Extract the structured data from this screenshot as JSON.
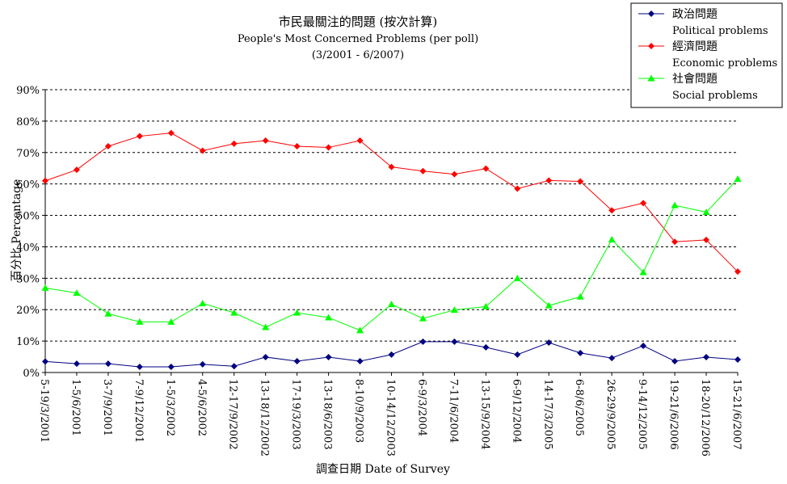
{
  "chart_data": {
    "type": "line",
    "title": "市民最關注的問題 (按次計算)",
    "subtitle": "People's Most Concerned Problems  (per poll)",
    "date_range": "(3/2001 - 6/2007)",
    "xlabel": "調查日期 Date of Survey",
    "ylabel": "百分比 Percentage",
    "ylim": [
      0,
      90
    ],
    "yticks": [
      "0%",
      "10%",
      "20%",
      "30%",
      "40%",
      "50%",
      "60%",
      "70%",
      "80%",
      "90%"
    ],
    "grid": true,
    "legend_position": "top-right",
    "categories": [
      "5-19/3/2001",
      "1-5/6/2001",
      "3-7/9/2001",
      "7-9/12/2001",
      "1-5/3/2002",
      "4-5/6/2002",
      "12-17/9/2002",
      "13-18/12/2002",
      "17-19/3/2003",
      "13-18/6/2003",
      "8-10/9/2003",
      "10-14/12/2003",
      "6-9/3/2004",
      "7-11/6/2004",
      "13-15/9/2004",
      "6-9/12/2004",
      "14-17/3/2005",
      "6-8/6/2005",
      "26-29/9/2005",
      "9-14/12/2005",
      "19-21/6/2006",
      "18-20/12/2006",
      "15-21/6/2007"
    ],
    "series": [
      {
        "name": "政治問題",
        "name_en": "Political problems",
        "color": "#000080",
        "marker": "diamond",
        "values": [
          3.5,
          2.8,
          2.8,
          1.8,
          1.8,
          2.6,
          2.0,
          4.9,
          3.6,
          4.9,
          3.6,
          5.7,
          9.8,
          9.8,
          8.0,
          5.7,
          9.5,
          6.2,
          4.6,
          8.5,
          3.6,
          4.9,
          4.1
        ]
      },
      {
        "name": "經濟問題",
        "name_en": "Economic problems",
        "color": "#ff0000",
        "marker": "diamond",
        "values": [
          61.0,
          64.5,
          72.0,
          75.2,
          76.2,
          70.6,
          72.8,
          73.8,
          72.0,
          71.6,
          73.8,
          65.4,
          64.1,
          63.1,
          64.9,
          58.5,
          61.1,
          60.8,
          51.6,
          53.9,
          41.6,
          42.2,
          32.1
        ]
      },
      {
        "name": "社會問題",
        "name_en": "Social problems",
        "color": "#00ff00",
        "marker": "triangle",
        "values": [
          26.9,
          25.3,
          18.7,
          16.1,
          16.1,
          22.0,
          19.0,
          14.4,
          19.0,
          17.5,
          13.4,
          21.7,
          17.2,
          19.9,
          21.0,
          30.0,
          21.3,
          24.1,
          42.3,
          31.9,
          53.2,
          51.0,
          61.6
        ]
      }
    ]
  }
}
